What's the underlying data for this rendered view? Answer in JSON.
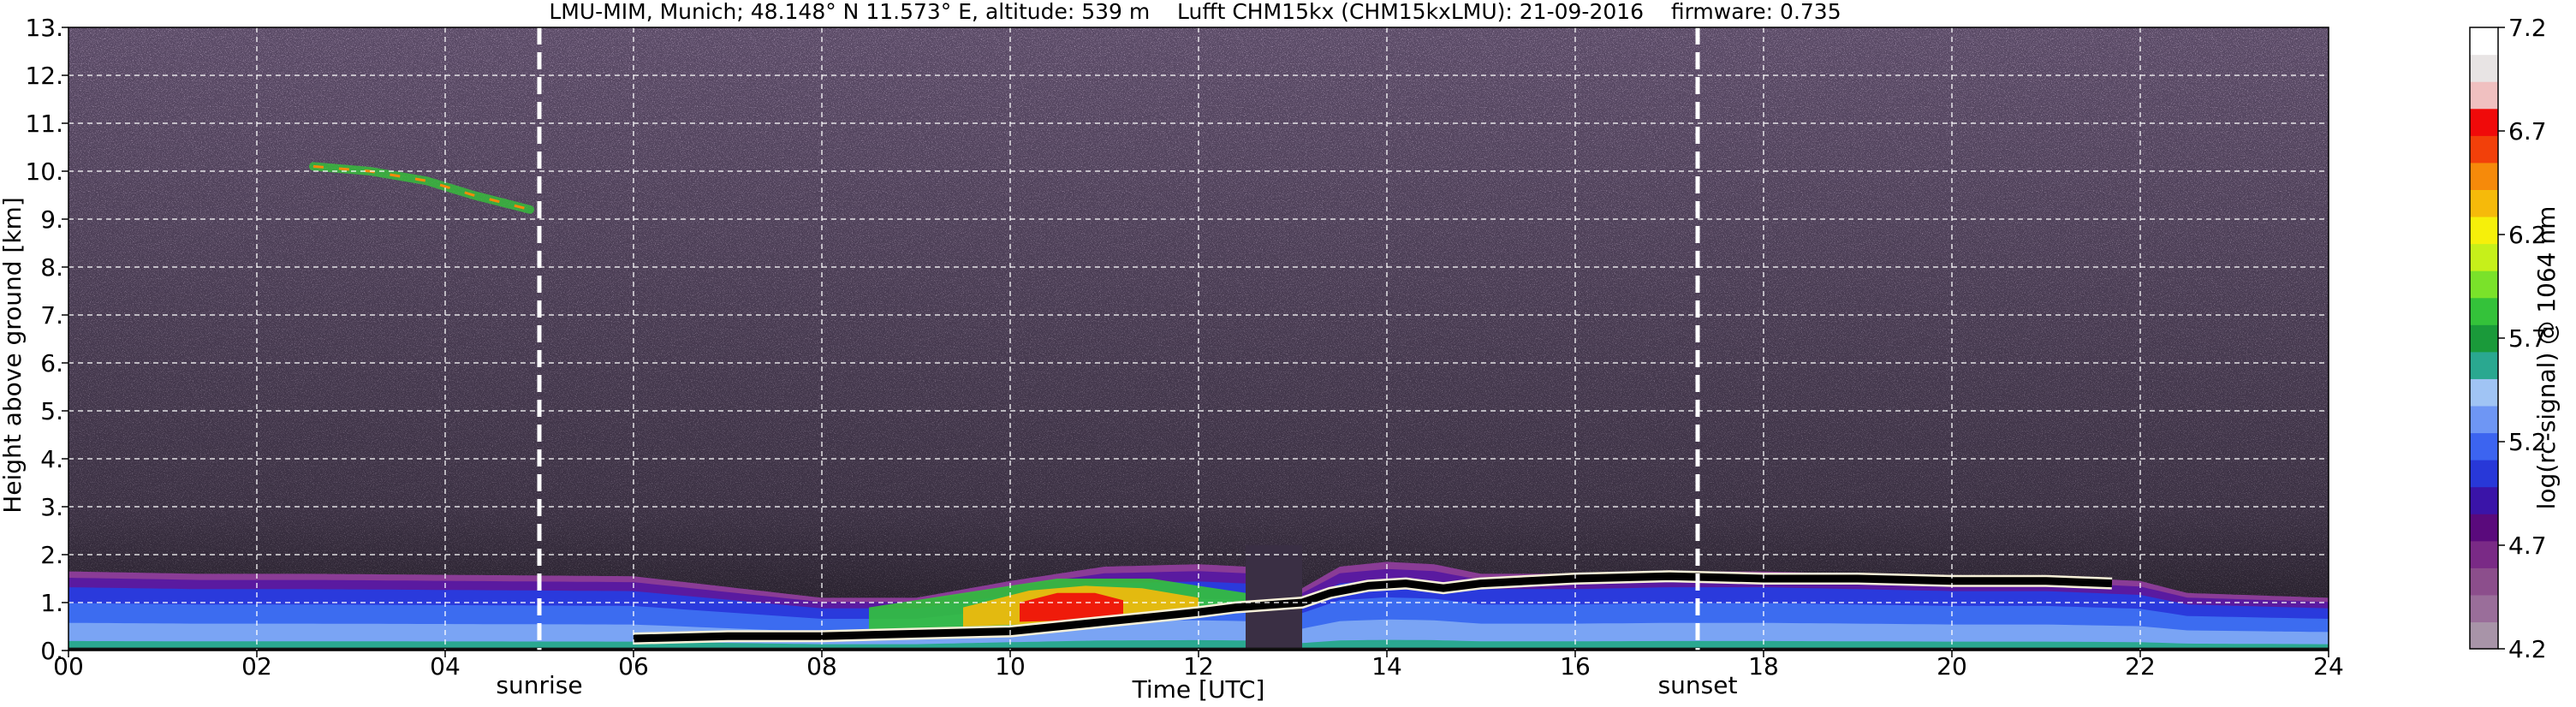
{
  "chart_data": {
    "type": "heatmap",
    "title": "LMU-MIM, Munich; 48.148° N 11.573° E, altitude: 539 m    Lufft CHM15kx (CHM15kxLMU): 21-09-2016    firmware: 0.735",
    "xlabel": "Time [UTC]",
    "ylabel": "Height above ground [km]",
    "xlim": [
      0,
      24
    ],
    "ylim": [
      0,
      13
    ],
    "x_ticks": [
      "00",
      "02",
      "04",
      "06",
      "08",
      "10",
      "12",
      "14",
      "16",
      "18",
      "20",
      "22",
      "24"
    ],
    "y_ticks": [
      "0.",
      "1.",
      "2.",
      "3.",
      "4.",
      "5.",
      "6.",
      "7.",
      "8.",
      "9.",
      "10.",
      "11.",
      "12.",
      "13."
    ],
    "grid": true,
    "colorbar": {
      "label": "log(rc-signal) @ 1064 nm",
      "range": [
        4.2,
        7.2
      ],
      "ticks": [
        "4.2",
        "4.7",
        "5.2",
        "5.7",
        "6.2",
        "6.7",
        "7.2"
      ],
      "colors": [
        "#a894a8",
        "#9a6e9a",
        "#8c4e8c",
        "#7a2a86",
        "#5a0a7c",
        "#3a14a8",
        "#2838d8",
        "#3c64f0",
        "#6e96f4",
        "#a0c4f4",
        "#2aa890",
        "#1a9a3a",
        "#34c23a",
        "#7ae22a",
        "#c6f01a",
        "#f6f00a",
        "#f6ba0a",
        "#f68a0a",
        "#f2400a",
        "#f00a0a",
        "#f0c0c0",
        "#e8e4e4",
        "#ffffff"
      ]
    },
    "annotations": [
      {
        "text": "sunrise",
        "x": 5.0
      },
      {
        "text": "sunset",
        "x": 17.3
      }
    ],
    "features": {
      "boundary_layer_top": {
        "x": [
          0,
          1.4,
          2.6,
          6,
          8,
          9,
          10,
          11,
          12,
          12.5,
          13.1,
          13.5,
          14,
          14.5,
          15,
          16,
          17,
          18,
          19,
          20,
          21,
          22,
          22.5,
          24
        ],
        "y": [
          1.65,
          1.6,
          1.6,
          1.55,
          1.1,
          1.1,
          1.45,
          1.75,
          1.8,
          1.75,
          1.3,
          1.75,
          1.85,
          1.8,
          1.6,
          1.6,
          1.65,
          1.65,
          1.6,
          1.55,
          1.55,
          1.45,
          1.2,
          1.1
        ]
      },
      "cloud_base": {
        "x": [
          6,
          7,
          8,
          9,
          10,
          10.5,
          11,
          11.5,
          12,
          12.4,
          13.1,
          13.4,
          13.8,
          14.2,
          14.6,
          15,
          16,
          17,
          18,
          19,
          20,
          21,
          21.7
        ],
        "y": [
          0.25,
          0.3,
          0.3,
          0.35,
          0.4,
          0.5,
          0.6,
          0.7,
          0.8,
          0.9,
          1.0,
          1.2,
          1.35,
          1.4,
          1.3,
          1.4,
          1.5,
          1.55,
          1.5,
          1.5,
          1.45,
          1.45,
          1.4
        ]
      },
      "cirrus": {
        "x": [
          2.6,
          3.2,
          3.8,
          4.3,
          4.9
        ],
        "y": [
          10.1,
          10.0,
          9.8,
          9.5,
          9.2
        ]
      }
    }
  }
}
